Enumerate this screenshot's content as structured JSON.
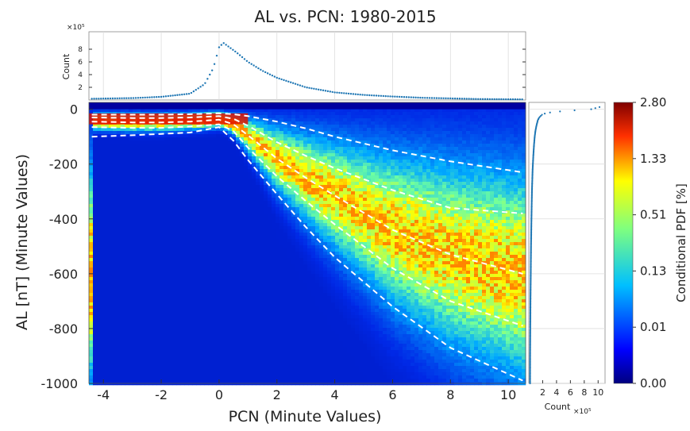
{
  "chart_data": [
    {
      "type": "heatmap",
      "title": "AL vs. PCN: 1980-2015",
      "xlabel": "PCN (Minute Values)",
      "ylabel": "AL [nT] (Minute Values)",
      "xlim": [
        -4.5,
        10.6
      ],
      "ylim": [
        -1000,
        25
      ],
      "xticks": [
        -4,
        -2,
        0,
        2,
        4,
        6,
        8,
        10
      ],
      "xtick_labels": [
        "-4",
        "-2",
        "0",
        "2",
        "4",
        "6",
        "8",
        "10"
      ],
      "yticks": [
        0,
        -200,
        -400,
        -600,
        -800,
        -1000
      ],
      "ytick_labels": [
        "0",
        "-200",
        "-400",
        "-600",
        "-800",
        "-1000"
      ],
      "contour_lines": [
        {
          "x": [
            -4.4,
            -3,
            -2,
            -1,
            0,
            0.5,
            1,
            2,
            3,
            4,
            6,
            8,
            10.5
          ],
          "y": [
            -20,
            -20,
            -20,
            -18,
            -15,
            -18,
            -25,
            -45,
            -70,
            -100,
            -150,
            -190,
            -230
          ]
        },
        {
          "x": [
            -4.4,
            -3,
            -2,
            -1,
            0,
            0.5,
            1,
            2,
            3,
            4,
            6,
            8,
            10.5
          ],
          "y": [
            -30,
            -32,
            -32,
            -30,
            -25,
            -35,
            -60,
            -120,
            -170,
            -215,
            -295,
            -360,
            -380
          ]
        },
        {
          "x": [
            -4.4,
            -3,
            -2,
            -1,
            0,
            0.5,
            1,
            2,
            3,
            4,
            6,
            8,
            10.5
          ],
          "y": [
            -45,
            -48,
            -48,
            -45,
            -38,
            -55,
            -95,
            -180,
            -250,
            -315,
            -440,
            -530,
            -600
          ]
        },
        {
          "x": [
            -4.4,
            -3,
            -2,
            -1,
            0,
            0.5,
            1,
            2,
            3,
            4,
            6,
            8,
            10.5
          ],
          "y": [
            -65,
            -68,
            -68,
            -63,
            -55,
            -80,
            -140,
            -245,
            -335,
            -420,
            -580,
            -700,
            -790
          ]
        },
        {
          "x": [
            -4.4,
            -3,
            -2,
            -1,
            0,
            0.5,
            1,
            2,
            3,
            4,
            6,
            8,
            10.5
          ],
          "y": [
            -100,
            -95,
            -90,
            -85,
            -65,
            -115,
            -185,
            -310,
            -430,
            -540,
            -720,
            -870,
            -990
          ]
        }
      ]
    },
    {
      "type": "scatter",
      "ylabel": "Count",
      "y_multiplier_label": "×10⁵",
      "ylim": [
        0,
        10
      ],
      "yticks": [
        2,
        4,
        6,
        8
      ],
      "ytick_labels": [
        "2",
        "4",
        "6",
        "8"
      ],
      "series": [
        {
          "x": [
            -4.4,
            -3,
            -2,
            -1,
            -0.5,
            -0.2,
            0,
            0.15,
            0.3,
            0.6,
            1,
            1.5,
            2,
            3,
            4,
            5,
            6,
            7,
            8,
            9,
            10.5
          ],
          "y": [
            0.2,
            0.3,
            0.5,
            1.0,
            2.5,
            5.0,
            8.3,
            9.0,
            8.5,
            7.5,
            6.0,
            4.6,
            3.5,
            2.0,
            1.2,
            0.8,
            0.55,
            0.35,
            0.25,
            0.15,
            0.1
          ]
        }
      ]
    },
    {
      "type": "scatter",
      "xlabel": "Count",
      "x_multiplier_label": "×10⁵",
      "xlim": [
        0,
        11
      ],
      "xticks": [
        2,
        4,
        6,
        8,
        10
      ],
      "xtick_labels": [
        "2",
        "4",
        "6",
        "8",
        "10"
      ],
      "series": [
        {
          "y": [
            10,
            0,
            -5,
            -10,
            -15,
            -20,
            -30,
            -40,
            -60,
            -80,
            -100,
            -130,
            -170,
            -220,
            -300,
            -400,
            -500,
            -600,
            -700,
            -800,
            -900,
            -1000
          ],
          "x": [
            10.5,
            9,
            6,
            3.5,
            2.4,
            1.9,
            1.5,
            1.3,
            1.1,
            0.95,
            0.85,
            0.75,
            0.65,
            0.55,
            0.45,
            0.38,
            0.32,
            0.28,
            0.24,
            0.21,
            0.19,
            0.18
          ]
        }
      ]
    },
    {
      "type": "colorbar",
      "label": "Conditional PDF [%]",
      "tick_labels": [
        "2.80",
        "1.33",
        "0.51",
        "0.13",
        "0.01",
        "0.00"
      ],
      "colors": [
        "#7f0000",
        "#ff0000",
        "#ffff00",
        "#00ffff",
        "#0000ff",
        "#00007f"
      ]
    }
  ]
}
